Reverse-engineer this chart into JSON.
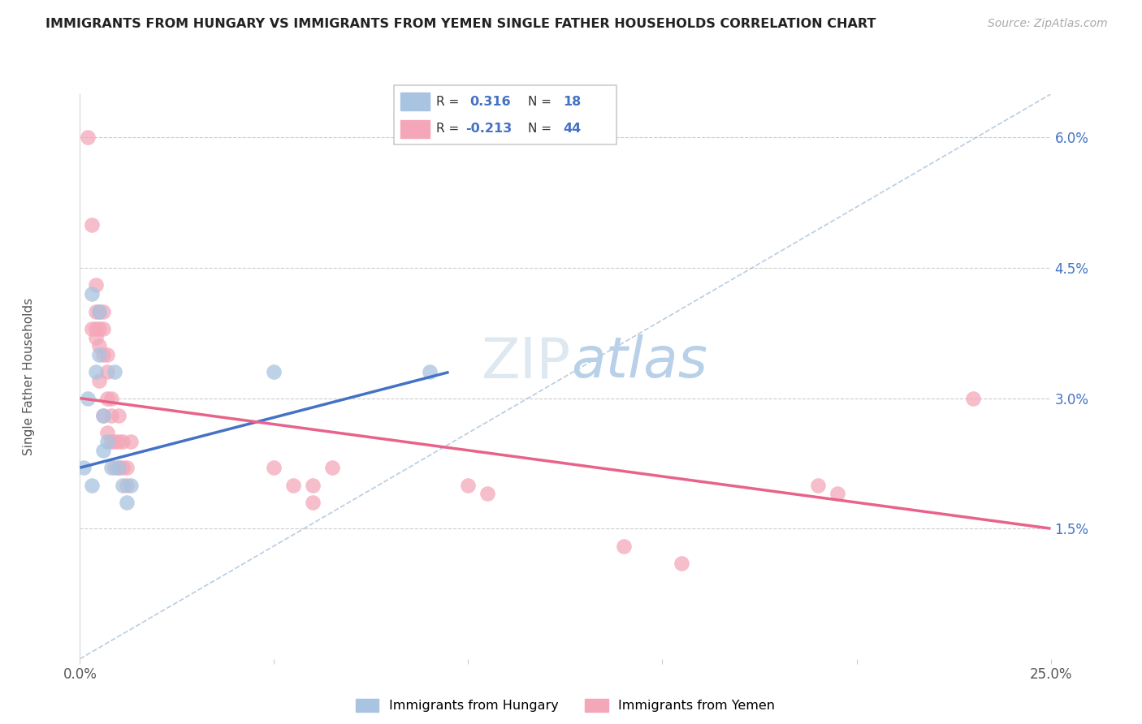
{
  "title": "IMMIGRANTS FROM HUNGARY VS IMMIGRANTS FROM YEMEN SINGLE FATHER HOUSEHOLDS CORRELATION CHART",
  "source": "Source: ZipAtlas.com",
  "ylabel": "Single Father Households",
  "xlim": [
    0.0,
    0.25
  ],
  "ylim": [
    0.0,
    0.065
  ],
  "yticks": [
    0.015,
    0.03,
    0.045,
    0.06
  ],
  "ytick_labels": [
    "1.5%",
    "3.0%",
    "4.5%",
    "6.0%"
  ],
  "color_hungary": "#a8c4e0",
  "color_yemen": "#f4a7b9",
  "line_color_hungary": "#4472c4",
  "line_color_yemen": "#e8638a",
  "diag_color": "#9ab8d4",
  "background_color": "#ffffff",
  "hungary_x": [
    0.001,
    0.002,
    0.003,
    0.003,
    0.004,
    0.005,
    0.005,
    0.006,
    0.006,
    0.007,
    0.008,
    0.009,
    0.01,
    0.011,
    0.012,
    0.013,
    0.05,
    0.09
  ],
  "hungary_y": [
    0.022,
    0.03,
    0.042,
    0.02,
    0.033,
    0.04,
    0.035,
    0.028,
    0.024,
    0.025,
    0.022,
    0.033,
    0.022,
    0.02,
    0.018,
    0.02,
    0.033,
    0.033
  ],
  "yemen_x": [
    0.002,
    0.003,
    0.003,
    0.004,
    0.004,
    0.004,
    0.004,
    0.005,
    0.005,
    0.005,
    0.005,
    0.006,
    0.006,
    0.006,
    0.006,
    0.007,
    0.007,
    0.007,
    0.007,
    0.008,
    0.008,
    0.008,
    0.009,
    0.009,
    0.01,
    0.01,
    0.01,
    0.011,
    0.011,
    0.012,
    0.012,
    0.013,
    0.05,
    0.055,
    0.06,
    0.065,
    0.1,
    0.105,
    0.14,
    0.155,
    0.19,
    0.195,
    0.23,
    0.06
  ],
  "yemen_y": [
    0.06,
    0.05,
    0.038,
    0.043,
    0.04,
    0.038,
    0.037,
    0.04,
    0.038,
    0.036,
    0.032,
    0.04,
    0.038,
    0.035,
    0.028,
    0.035,
    0.033,
    0.03,
    0.026,
    0.03,
    0.028,
    0.025,
    0.025,
    0.022,
    0.028,
    0.025,
    0.022,
    0.025,
    0.022,
    0.022,
    0.02,
    0.025,
    0.022,
    0.02,
    0.02,
    0.022,
    0.02,
    0.019,
    0.013,
    0.011,
    0.02,
    0.019,
    0.03,
    0.018
  ],
  "hungary_line_x": [
    0.0,
    0.095
  ],
  "hungary_line_y": [
    0.022,
    0.033
  ],
  "yemen_line_x": [
    0.0,
    0.25
  ],
  "yemen_line_y": [
    0.03,
    0.015
  ],
  "diag_line_x": [
    0.0,
    0.25
  ],
  "diag_line_y": [
    0.0,
    0.065
  ]
}
